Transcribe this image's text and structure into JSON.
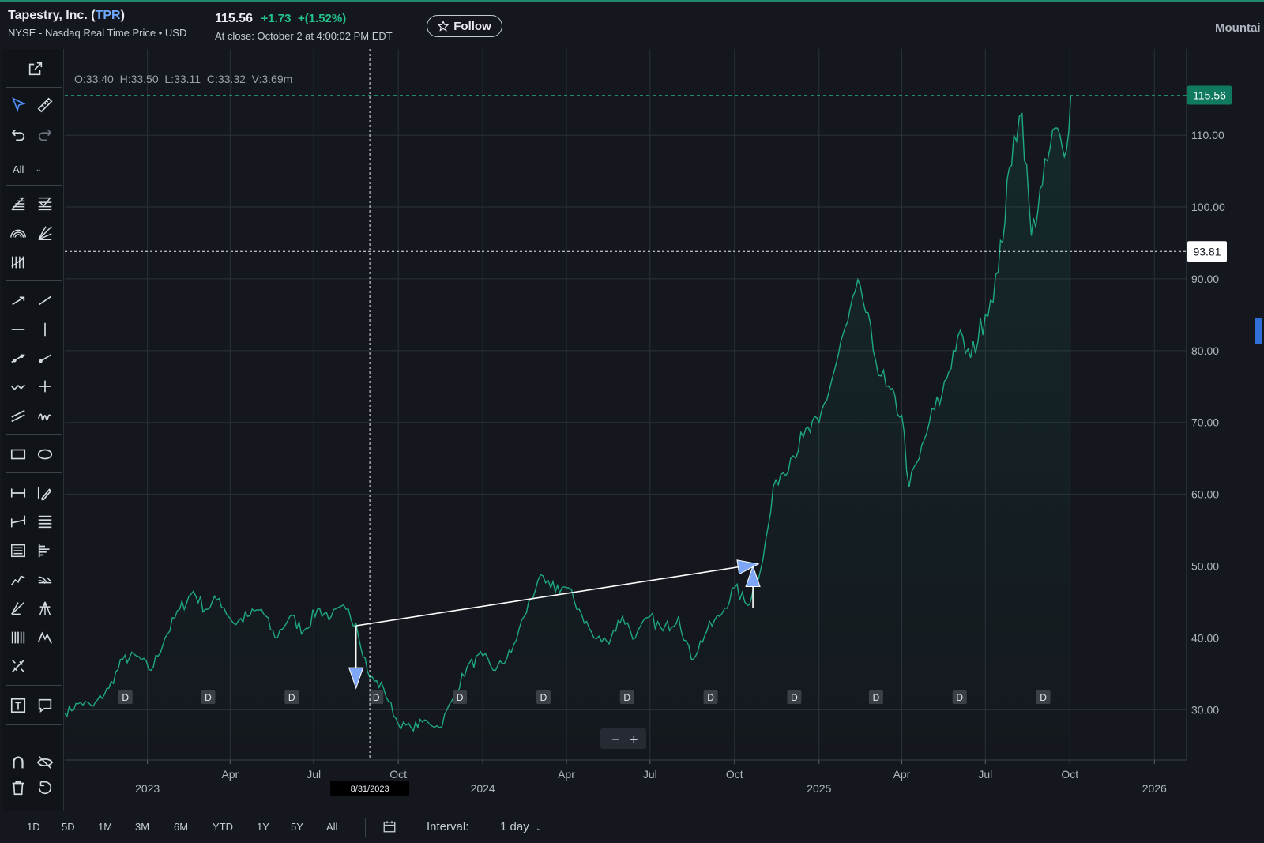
{
  "header": {
    "company": "Tapestry, Inc.",
    "ticker": "TPR",
    "exchange": "NYSE - Nasdaq Real Time Price • USD",
    "price": "115.56",
    "change": "+1.73",
    "change_pct": "+(1.52%)",
    "close_time": "At close: October 2 at 4:00:02 PM EDT",
    "follow_label": "Follow",
    "region_label": "Mountai"
  },
  "toolbar": {
    "filter_value": "All",
    "tools": [
      "external-link",
      "cursor",
      "ruler",
      "undo",
      "redo",
      "fib-retracement",
      "fib-trend",
      "fib-circle",
      "fib-fan",
      "pitchfork-lines",
      "arrow",
      "trend-line",
      "horizontal-line",
      "vertical-line",
      "extended-line",
      "ray",
      "path",
      "crosshair",
      "parallel-channel",
      "brush",
      "rectangle",
      "ellipse",
      "date-range",
      "pencil",
      "price-range",
      "horizontal-lines",
      "text-table",
      "bars",
      "xabcd",
      "speed-fan",
      "gann",
      "andrews-pitchfork",
      "cycle-lines",
      "elliott",
      "measure",
      "text",
      "callout",
      "magnet",
      "hide",
      "trash",
      "reset"
    ]
  },
  "colors": {
    "line": "#1ea884",
    "accent": "#0f7a5f",
    "bg": "#14181e",
    "grid": "#2b3139",
    "arrow": "#ffffff",
    "arrowhead": "#7ea6f6",
    "marker_bg": "#3b4048"
  },
  "chart_data": {
    "type": "line",
    "ohlc_label": "O:33.40  H:33.50  L:33.11  C:33.32  V:3.69m",
    "last_price_label": "115.56",
    "crosshair_price_label": "93.81",
    "crosshair_date_label": "8/31/2023",
    "y_ticks": [
      "30.00",
      "40.00",
      "50.00",
      "60.00",
      "70.00",
      "80.00",
      "90.00",
      "100.00",
      "110.00"
    ],
    "y_range": [
      23,
      122
    ],
    "x_range": [
      "2022-10-03",
      "2026-02-05"
    ],
    "x_ticks": [
      {
        "label": "2023",
        "date": "2023-01-01",
        "year": true
      },
      {
        "label": "Apr",
        "date": "2023-04-01"
      },
      {
        "label": "Jul",
        "date": "2023-07-01"
      },
      {
        "label": "Oct",
        "date": "2023-10-01"
      },
      {
        "label": "2024",
        "date": "2024-01-01",
        "year": true
      },
      {
        "label": "Apr",
        "date": "2024-04-01"
      },
      {
        "label": "Jul",
        "date": "2024-07-01"
      },
      {
        "label": "Oct",
        "date": "2024-10-01"
      },
      {
        "label": "2025",
        "date": "2025-01-01",
        "year": true
      },
      {
        "label": "Apr",
        "date": "2025-04-01"
      },
      {
        "label": "Jul",
        "date": "2025-07-01"
      },
      {
        "label": "Oct",
        "date": "2025-10-01"
      },
      {
        "label": "2026",
        "date": "2026-01-01",
        "year": true
      }
    ],
    "dividend_label": "D",
    "dividend_dates": [
      "2022-12-08",
      "2023-03-08",
      "2023-06-07",
      "2023-09-07",
      "2023-12-07",
      "2024-03-07",
      "2024-06-06",
      "2024-09-05",
      "2024-12-05",
      "2025-03-04",
      "2025-06-03",
      "2025-09-02"
    ],
    "series": [
      {
        "x": [
          "2022-10-03",
          "2022-10-20",
          "2022-11-03",
          "2022-11-20",
          "2022-12-05",
          "2022-12-20",
          "2023-01-05",
          "2023-01-20",
          "2023-02-05",
          "2023-02-20",
          "2023-03-05",
          "2023-03-20",
          "2023-04-05",
          "2023-04-20",
          "2023-05-05",
          "2023-05-20",
          "2023-06-05",
          "2023-06-20",
          "2023-07-05",
          "2023-07-20",
          "2023-08-05",
          "2023-08-16",
          "2023-08-31",
          "2023-09-15",
          "2023-10-01",
          "2023-10-15",
          "2023-11-01",
          "2023-11-15",
          "2023-12-01",
          "2023-12-15",
          "2024-01-01",
          "2024-01-15",
          "2024-02-01",
          "2024-02-15",
          "2024-03-01",
          "2024-03-15",
          "2024-04-01",
          "2024-04-15",
          "2024-05-01",
          "2024-05-15",
          "2024-06-01",
          "2024-06-15",
          "2024-07-01",
          "2024-07-15",
          "2024-08-01",
          "2024-08-15",
          "2024-09-01",
          "2024-09-15",
          "2024-10-01",
          "2024-10-15",
          "2024-11-01",
          "2024-11-15",
          "2024-12-01",
          "2024-12-15",
          "2025-01-01",
          "2025-01-15",
          "2025-02-01",
          "2025-02-15",
          "2025-03-01",
          "2025-03-15",
          "2025-04-01",
          "2025-04-09",
          "2025-04-20",
          "2025-05-01",
          "2025-05-15",
          "2025-06-01",
          "2025-06-15",
          "2025-07-01",
          "2025-07-15",
          "2025-08-01",
          "2025-08-10",
          "2025-08-20",
          "2025-09-01",
          "2025-09-15",
          "2025-09-25",
          "2025-10-02"
        ],
        "y": [
          29.5,
          31,
          30.5,
          33,
          37,
          37.5,
          35.5,
          40,
          44,
          46.5,
          44,
          45.5,
          42,
          43,
          44,
          40,
          43,
          41,
          44,
          43,
          44,
          42,
          34.5,
          33,
          28,
          27.5,
          28.5,
          27.5,
          32,
          36,
          37.5,
          35.5,
          38,
          43,
          48,
          47,
          47,
          44,
          40,
          39.5,
          43,
          40,
          43,
          41,
          43,
          37,
          41,
          43,
          47,
          44.5,
          51,
          62,
          65,
          68,
          70,
          76,
          84,
          89,
          80,
          75,
          71,
          61,
          65,
          70,
          74,
          82,
          79,
          85,
          91,
          110,
          113,
          96,
          103,
          111,
          107,
          115.56
        ]
      }
    ],
    "annotations": [
      {
        "kind": "arrow",
        "from": [
          "2023-08-16",
          41.7
        ],
        "to": [
          "2023-08-16",
          33
        ]
      },
      {
        "kind": "arrow",
        "from": [
          "2023-08-16",
          41.7
        ],
        "to": [
          "2024-10-27",
          50.3
        ]
      },
      {
        "kind": "arrow",
        "from": [
          "2024-10-21",
          44.2
        ],
        "to": [
          "2024-10-21",
          50
        ]
      }
    ]
  },
  "footer": {
    "ranges": [
      "1D",
      "5D",
      "1M",
      "3M",
      "6M",
      "YTD",
      "1Y",
      "5Y",
      "All"
    ],
    "interval_label": "Interval:",
    "interval_value": "1 day"
  }
}
